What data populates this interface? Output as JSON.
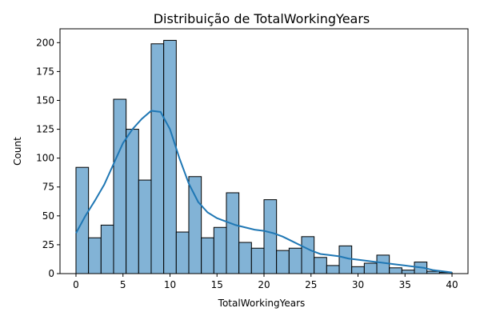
{
  "chart_data": {
    "type": "bar",
    "title": "Distribuição de TotalWorkingYears",
    "xlabel": "TotalWorkingYears",
    "ylabel": "Count",
    "xlim": [
      -1.7,
      41.7
    ],
    "ylim": [
      0,
      212
    ],
    "xticks": [
      0,
      5,
      10,
      15,
      20,
      25,
      30,
      35,
      40
    ],
    "yticks": [
      0,
      25,
      50,
      75,
      100,
      125,
      150,
      175,
      200
    ],
    "bin_edges": [
      0,
      1.333,
      2.667,
      4,
      5.333,
      6.667,
      8,
      9.333,
      10.667,
      12,
      13.333,
      14.667,
      16,
      17.333,
      18.667,
      20,
      21.333,
      22.667,
      24,
      25.333,
      26.667,
      28,
      29.333,
      30.667,
      32,
      33.333,
      34.667,
      36,
      37.333,
      38.667,
      40
    ],
    "counts": [
      92,
      31,
      42,
      151,
      125,
      81,
      199,
      202,
      36,
      84,
      31,
      40,
      70,
      27,
      22,
      64,
      20,
      22,
      32,
      14,
      7,
      24,
      6,
      9,
      16,
      5,
      3,
      10,
      2,
      1
    ],
    "kde": {
      "x": [
        0,
        1,
        2,
        3,
        4,
        5,
        6,
        7,
        8,
        9,
        10,
        11,
        12,
        13,
        14,
        15,
        16,
        17,
        18,
        19,
        20,
        21,
        22,
        23,
        24,
        25,
        26,
        27,
        28,
        29,
        30,
        31,
        32,
        33,
        34,
        35,
        36,
        37,
        38,
        39,
        40
      ],
      "y": [
        35,
        50,
        63,
        77,
        95,
        113,
        125,
        134,
        141,
        140,
        125,
        100,
        78,
        62,
        53,
        48,
        45,
        42,
        40,
        38,
        37,
        35,
        32,
        28,
        24,
        20,
        17,
        16,
        15,
        13,
        12,
        11,
        10,
        9,
        8,
        7,
        6,
        5,
        3,
        2,
        1
      ]
    },
    "colors": {
      "bar": "#82b3d6",
      "kde": "#1f77b4"
    },
    "grid": false
  }
}
